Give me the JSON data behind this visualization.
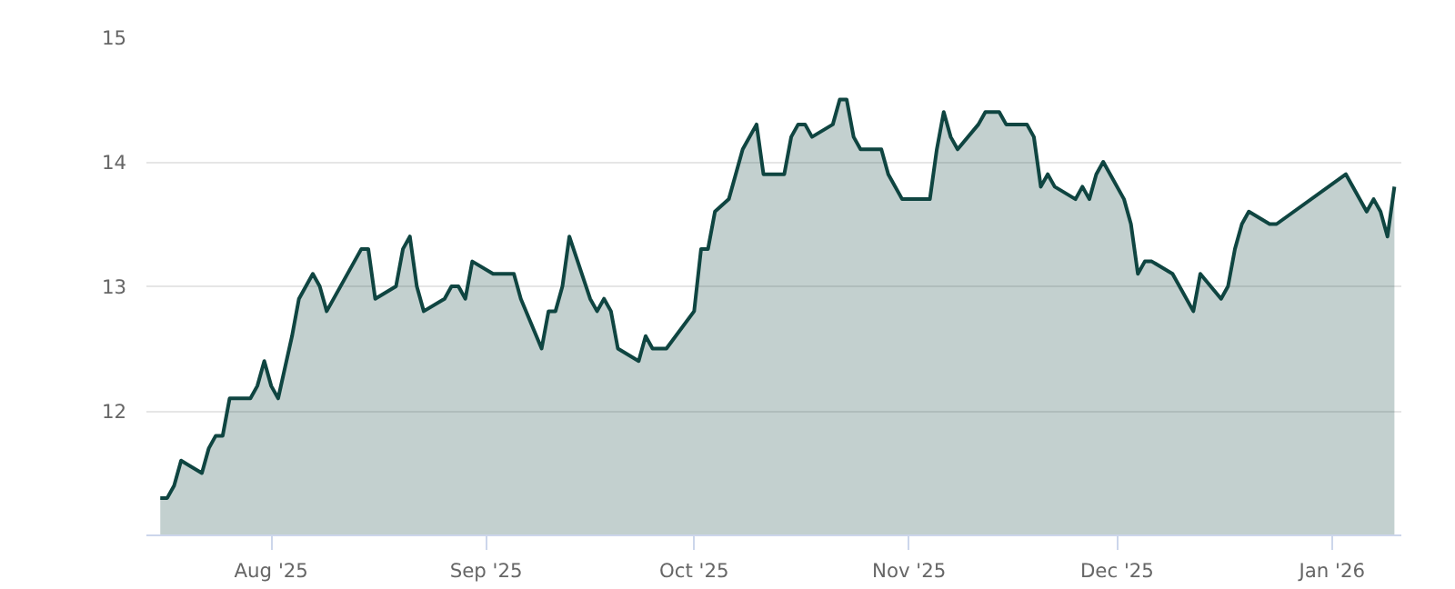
{
  "chart_data": {
    "type": "area",
    "x": [
      "2025-07-16",
      "2025-07-17",
      "2025-07-18",
      "2025-07-19",
      "2025-07-22",
      "2025-07-23",
      "2025-07-24",
      "2025-07-25",
      "2025-07-26",
      "2025-07-29",
      "2025-07-30",
      "2025-07-31",
      "2025-08-01",
      "2025-08-02",
      "2025-08-04",
      "2025-08-05",
      "2025-08-07",
      "2025-08-08",
      "2025-08-09",
      "2025-08-14",
      "2025-08-15",
      "2025-08-16",
      "2025-08-19",
      "2025-08-20",
      "2025-08-21",
      "2025-08-22",
      "2025-08-23",
      "2025-08-26",
      "2025-08-27",
      "2025-08-28",
      "2025-08-29",
      "2025-08-30",
      "2025-09-02",
      "2025-09-05",
      "2025-09-06",
      "2025-09-09",
      "2025-09-10",
      "2025-09-11",
      "2025-09-12",
      "2025-09-13",
      "2025-09-16",
      "2025-09-17",
      "2025-09-18",
      "2025-09-19",
      "2025-09-20",
      "2025-09-23",
      "2025-09-24",
      "2025-09-25",
      "2025-09-27",
      "2025-10-01",
      "2025-10-02",
      "2025-10-03",
      "2025-10-04",
      "2025-10-06",
      "2025-10-08",
      "2025-10-10",
      "2025-10-11",
      "2025-10-14",
      "2025-10-15",
      "2025-10-16",
      "2025-10-17",
      "2025-10-18",
      "2025-10-21",
      "2025-10-22",
      "2025-10-23",
      "2025-10-24",
      "2025-10-25",
      "2025-10-28",
      "2025-10-29",
      "2025-10-31",
      "2025-11-04",
      "2025-11-05",
      "2025-11-06",
      "2025-11-07",
      "2025-11-08",
      "2025-11-11",
      "2025-11-12",
      "2025-11-14",
      "2025-11-15",
      "2025-11-18",
      "2025-11-19",
      "2025-11-20",
      "2025-11-21",
      "2025-11-22",
      "2025-11-25",
      "2025-11-26",
      "2025-11-27",
      "2025-11-28",
      "2025-11-29",
      "2025-12-02",
      "2025-12-03",
      "2025-12-04",
      "2025-12-05",
      "2025-12-06",
      "2025-12-09",
      "2025-12-12",
      "2025-12-13",
      "2025-12-16",
      "2025-12-17",
      "2025-12-18",
      "2025-12-19",
      "2025-12-20",
      "2025-12-23",
      "2025-12-24",
      "2026-01-03",
      "2026-01-06",
      "2026-01-07",
      "2026-01-08",
      "2026-01-09",
      "2026-01-10"
    ],
    "series": [
      {
        "color": "#0f4541",
        "values": [
          11.3,
          11.3,
          11.4,
          11.6,
          11.5,
          11.7,
          11.8,
          11.8,
          12.1,
          12.1,
          12.2,
          12.4,
          12.2,
          12.1,
          12.6,
          12.9,
          13.1,
          13.0,
          12.8,
          13.3,
          13.3,
          12.9,
          13.0,
          13.3,
          13.4,
          13.0,
          12.8,
          12.9,
          13.0,
          13.0,
          12.9,
          13.2,
          13.1,
          13.1,
          12.9,
          12.5,
          12.8,
          12.8,
          13.0,
          13.4,
          12.9,
          12.8,
          12.9,
          12.8,
          12.5,
          12.4,
          12.6,
          12.5,
          12.5,
          12.8,
          13.3,
          13.3,
          13.6,
          13.7,
          14.1,
          14.3,
          13.9,
          13.9,
          14.2,
          14.3,
          14.3,
          14.2,
          14.3,
          14.5,
          14.5,
          14.2,
          14.1,
          14.1,
          13.9,
          13.7,
          13.7,
          14.1,
          14.4,
          14.2,
          14.1,
          14.3,
          14.4,
          14.4,
          14.3,
          14.3,
          14.2,
          13.8,
          13.9,
          13.8,
          13.7,
          13.8,
          13.7,
          13.9,
          14.0,
          13.7,
          13.5,
          13.1,
          13.2,
          13.2,
          13.1,
          12.8,
          13.1,
          12.9,
          13.0,
          13.3,
          13.5,
          13.6,
          13.5,
          13.5,
          13.9,
          13.6,
          13.7,
          13.6,
          13.4,
          13.8
        ]
      }
    ],
    "xlim": [
      "2025-07-14",
      "2026-01-11"
    ],
    "xticks": [
      {
        "value": "2025-08-01",
        "label": "Aug '25"
      },
      {
        "value": "2025-09-01",
        "label": "Sep '25"
      },
      {
        "value": "2025-10-01",
        "label": "Oct '25"
      },
      {
        "value": "2025-11-01",
        "label": "Nov '25"
      },
      {
        "value": "2025-12-01",
        "label": "Dec '25"
      },
      {
        "value": "2026-01-01",
        "label": "Jan '26"
      }
    ],
    "ylim": [
      11,
      15
    ],
    "yticks": [
      12,
      13,
      14,
      15
    ],
    "grid": "y"
  }
}
